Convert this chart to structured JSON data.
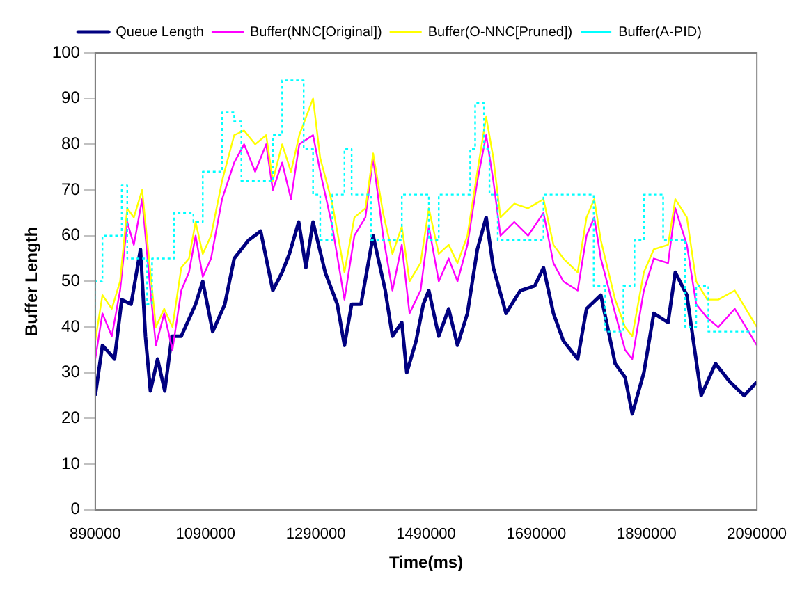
{
  "chart_data": {
    "type": "line",
    "xlabel": "Time(ms)",
    "ylabel": "Buffer Length",
    "xlim": [
      890000,
      2090000
    ],
    "xticks": [
      890000,
      1090000,
      1290000,
      1490000,
      1690000,
      1890000,
      2090000
    ],
    "ylim": [
      0,
      100
    ],
    "yticks": [
      0,
      10,
      20,
      30,
      40,
      50,
      60,
      70,
      80,
      90,
      100
    ],
    "grid": false,
    "legend": "top",
    "marker": "none",
    "series": [
      {
        "name": "Queue Length",
        "color": "#000080",
        "x": [
          890000,
          903000,
          925000,
          938000,
          955000,
          972000,
          981000,
          990000,
          1003000,
          1016000,
          1029000,
          1046000,
          1072000,
          1085000,
          1103000,
          1125000,
          1142000,
          1168000,
          1190000,
          1212000,
          1229000,
          1242000,
          1259000,
          1272000,
          1285000,
          1307000,
          1329000,
          1342000,
          1355000,
          1372000,
          1394000,
          1416000,
          1429000,
          1446000,
          1455000,
          1472000,
          1485000,
          1495000,
          1513000,
          1531000,
          1547000,
          1565000,
          1583000,
          1599000,
          1612000,
          1635000,
          1661000,
          1687000,
          1703000,
          1721000,
          1739000,
          1765000,
          1781000,
          1807000,
          1833000,
          1851000,
          1864000,
          1885000,
          1903000,
          1929000,
          1942000,
          1963000,
          1989000,
          2015000,
          2041000,
          2067000,
          2090000
        ],
        "values": [
          25,
          36,
          33,
          46,
          45,
          57,
          38,
          26,
          33,
          26,
          38,
          38,
          45,
          50,
          39,
          45,
          55,
          59,
          61,
          48,
          52,
          56,
          63,
          53,
          63,
          52,
          45,
          36,
          45,
          45,
          60,
          48,
          38,
          41,
          30,
          37,
          45,
          48,
          38,
          44,
          36,
          43,
          57,
          64,
          53,
          43,
          48,
          49,
          53,
          43,
          37,
          33,
          44,
          47,
          32,
          29,
          21,
          30,
          43,
          41,
          52,
          47,
          25,
          32,
          28,
          25,
          28
        ]
      },
      {
        "name": "Buffer(NNC[Original])",
        "color": "#ff00ff",
        "x": [
          890000,
          903000,
          920000,
          935000,
          948000,
          960000,
          975000,
          990000,
          1000000,
          1015000,
          1030000,
          1046000,
          1060000,
          1072000,
          1085000,
          1100000,
          1120000,
          1142000,
          1160000,
          1180000,
          1200000,
          1212000,
          1229000,
          1245000,
          1260000,
          1285000,
          1298000,
          1320000,
          1342000,
          1360000,
          1380000,
          1394000,
          1412000,
          1429000,
          1446000,
          1460000,
          1480000,
          1495000,
          1513000,
          1531000,
          1547000,
          1565000,
          1583000,
          1599000,
          1612000,
          1625000,
          1650000,
          1675000,
          1703000,
          1721000,
          1739000,
          1765000,
          1781000,
          1795000,
          1807000,
          1833000,
          1851000,
          1864000,
          1885000,
          1903000,
          1929000,
          1942000,
          1963000,
          1980000,
          2000000,
          2020000,
          2050000,
          2090000
        ],
        "values": [
          33,
          43,
          38,
          48,
          63,
          58,
          68,
          48,
          36,
          43,
          35,
          48,
          52,
          60,
          51,
          55,
          68,
          76,
          80,
          74,
          80,
          70,
          76,
          68,
          80,
          82,
          74,
          62,
          46,
          60,
          64,
          77,
          60,
          48,
          58,
          43,
          48,
          62,
          50,
          55,
          50,
          58,
          72,
          82,
          72,
          60,
          63,
          60,
          65,
          54,
          50,
          48,
          60,
          64,
          55,
          43,
          35,
          33,
          48,
          55,
          54,
          66,
          58,
          45,
          42,
          40,
          44,
          36
        ]
      },
      {
        "name": "Buffer(O-NNC[Pruned])",
        "color": "#ffff00",
        "x": [
          890000,
          903000,
          920000,
          935000,
          948000,
          960000,
          975000,
          990000,
          1000000,
          1015000,
          1030000,
          1046000,
          1060000,
          1072000,
          1085000,
          1100000,
          1120000,
          1142000,
          1160000,
          1180000,
          1200000,
          1212000,
          1229000,
          1245000,
          1260000,
          1285000,
          1298000,
          1320000,
          1342000,
          1360000,
          1380000,
          1394000,
          1412000,
          1429000,
          1446000,
          1460000,
          1480000,
          1495000,
          1513000,
          1531000,
          1547000,
          1565000,
          1583000,
          1599000,
          1612000,
          1625000,
          1650000,
          1675000,
          1703000,
          1721000,
          1739000,
          1765000,
          1781000,
          1795000,
          1807000,
          1833000,
          1851000,
          1864000,
          1885000,
          1903000,
          1929000,
          1942000,
          1963000,
          1980000,
          2000000,
          2020000,
          2050000,
          2090000
        ],
        "values": [
          37,
          47,
          44,
          50,
          66,
          64,
          70,
          52,
          40,
          44,
          40,
          53,
          55,
          63,
          56,
          60,
          72,
          82,
          83,
          80,
          82,
          72,
          80,
          74,
          82,
          90,
          77,
          67,
          52,
          64,
          66,
          78,
          65,
          56,
          62,
          50,
          54,
          66,
          56,
          58,
          54,
          60,
          74,
          86,
          77,
          64,
          67,
          66,
          68,
          58,
          55,
          52,
          64,
          68,
          59,
          46,
          40,
          38,
          52,
          57,
          58,
          68,
          64,
          50,
          46,
          46,
          48,
          40
        ]
      },
      {
        "name": "Buffer(A-PID)",
        "color": "#00ffff",
        "type": "step",
        "line_style": "dotted",
        "x": [
          890000,
          903000,
          938000,
          948000,
          984000,
          993000,
          1033000,
          1068000,
          1085000,
          1120000,
          1142000,
          1155000,
          1212000,
          1229000,
          1268000,
          1285000,
          1298000,
          1320000,
          1342000,
          1355000,
          1390000,
          1412000,
          1446000,
          1495000,
          1513000,
          1570000,
          1579000,
          1595000,
          1605000,
          1620000,
          1703000,
          1794000,
          1815000,
          1848000,
          1868000,
          1885000,
          1920000,
          1960000,
          1980000,
          2002000,
          2041000,
          2090000
        ],
        "values": [
          40,
          50,
          60,
          71,
          55,
          45,
          55,
          65,
          63,
          74,
          87,
          85,
          72,
          82,
          94,
          79,
          69,
          59,
          69,
          79,
          69,
          59,
          59,
          69,
          59,
          69,
          79,
          89,
          79,
          69,
          59,
          69,
          49,
          39,
          49,
          59,
          69,
          59,
          40,
          49,
          39,
          39
        ]
      }
    ]
  }
}
